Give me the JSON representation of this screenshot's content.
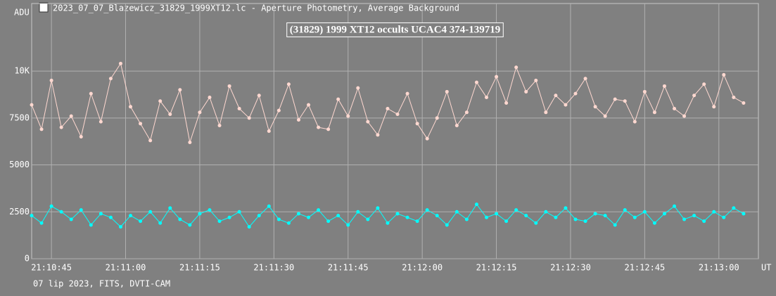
{
  "window_title": "2023_07_07_Blazewicz_31829_1999XT12.lc - Aperture Photometry, Average Background",
  "footer": "07 lip 2023, FITS, DVTI-CAM",
  "chart_data": {
    "type": "line",
    "title": "(31829) 1999 XT12 occults UCAC4 374-139719",
    "y_label": "ADU",
    "x_label": "UT",
    "x": [
      "21:10:41",
      "21:10:43",
      "21:10:45",
      "21:10:47",
      "21:10:49",
      "21:10:51",
      "21:10:53",
      "21:10:55",
      "21:10:57",
      "21:10:59",
      "21:11:01",
      "21:11:03",
      "21:11:05",
      "21:11:07",
      "21:11:09",
      "21:11:11",
      "21:11:13",
      "21:11:15",
      "21:11:17",
      "21:11:19",
      "21:11:21",
      "21:11:23",
      "21:11:25",
      "21:11:27",
      "21:11:29",
      "21:11:31",
      "21:11:33",
      "21:11:35",
      "21:11:37",
      "21:11:39",
      "21:11:41",
      "21:11:43",
      "21:11:45",
      "21:11:47",
      "21:11:49",
      "21:11:51",
      "21:11:53",
      "21:11:55",
      "21:11:57",
      "21:11:59",
      "21:12:01",
      "21:12:03",
      "21:12:05",
      "21:12:07",
      "21:12:09",
      "21:12:11",
      "21:12:13",
      "21:12:15",
      "21:12:17",
      "21:12:19",
      "21:12:21",
      "21:12:23",
      "21:12:25",
      "21:12:27",
      "21:12:29",
      "21:12:31",
      "21:12:33",
      "21:12:35",
      "21:12:37",
      "21:12:39",
      "21:12:41",
      "21:12:43",
      "21:12:45",
      "21:12:47",
      "21:12:49",
      "21:12:51",
      "21:12:53",
      "21:12:55",
      "21:12:57",
      "21:12:59",
      "21:13:01",
      "21:13:03",
      "21:13:05"
    ],
    "series": [
      {
        "color": "#ffd8d0",
        "values": [
          8200,
          6900,
          9500,
          7000,
          7600,
          6500,
          8800,
          7300,
          9600,
          10400,
          8100,
          7200,
          6300,
          8400,
          7700,
          9000,
          6200,
          7800,
          8600,
          7100,
          9200,
          8000,
          7500,
          8700,
          6800,
          7900,
          9300,
          7400,
          8200,
          7000,
          6900,
          8500,
          7600,
          9100,
          7300,
          6600,
          8000,
          7700,
          8800,
          7200,
          6400,
          7500,
          8900,
          7100,
          7800,
          9400,
          8600,
          9700,
          8300,
          10200,
          8900,
          9500,
          7800,
          8700,
          8200,
          8800,
          9600,
          8100,
          7600,
          8500,
          8400,
          7300,
          8900,
          7800,
          9200,
          8000,
          7600,
          8700,
          9300,
          8100,
          9800,
          8600,
          8300
        ]
      },
      {
        "color": "#00ffff",
        "values": [
          2300,
          1900,
          2800,
          2500,
          2100,
          2600,
          1800,
          2400,
          2200,
          1700,
          2300,
          2000,
          2500,
          1900,
          2700,
          2100,
          1800,
          2400,
          2600,
          2000,
          2200,
          2500,
          1700,
          2300,
          2800,
          2100,
          1900,
          2400,
          2200,
          2600,
          2000,
          2300,
          1800,
          2500,
          2100,
          2700,
          1900,
          2400,
          2200,
          2000,
          2600,
          2300,
          1800,
          2500,
          2100,
          2900,
          2200,
          2400,
          2000,
          2600,
          2300,
          1900,
          2500,
          2200,
          2700,
          2100,
          2000,
          2400,
          2300,
          1800,
          2600,
          2200,
          2500,
          1900,
          2400,
          2800,
          2100,
          2300,
          2000,
          2500,
          2200,
          2700,
          2400
        ]
      }
    ],
    "xlim": [
      "21:10:41",
      "21:13:08"
    ],
    "xticks": [
      "21:10:45",
      "21:11:00",
      "21:11:15",
      "21:11:30",
      "21:11:45",
      "21:12:00",
      "21:12:15",
      "21:12:30",
      "21:12:45",
      "21:13:00"
    ],
    "ylim": [
      0,
      13600
    ],
    "yticks": [
      0,
      2500,
      5000,
      7500,
      {
        "value": 10000,
        "label": "10K"
      }
    ],
    "grid": true
  }
}
